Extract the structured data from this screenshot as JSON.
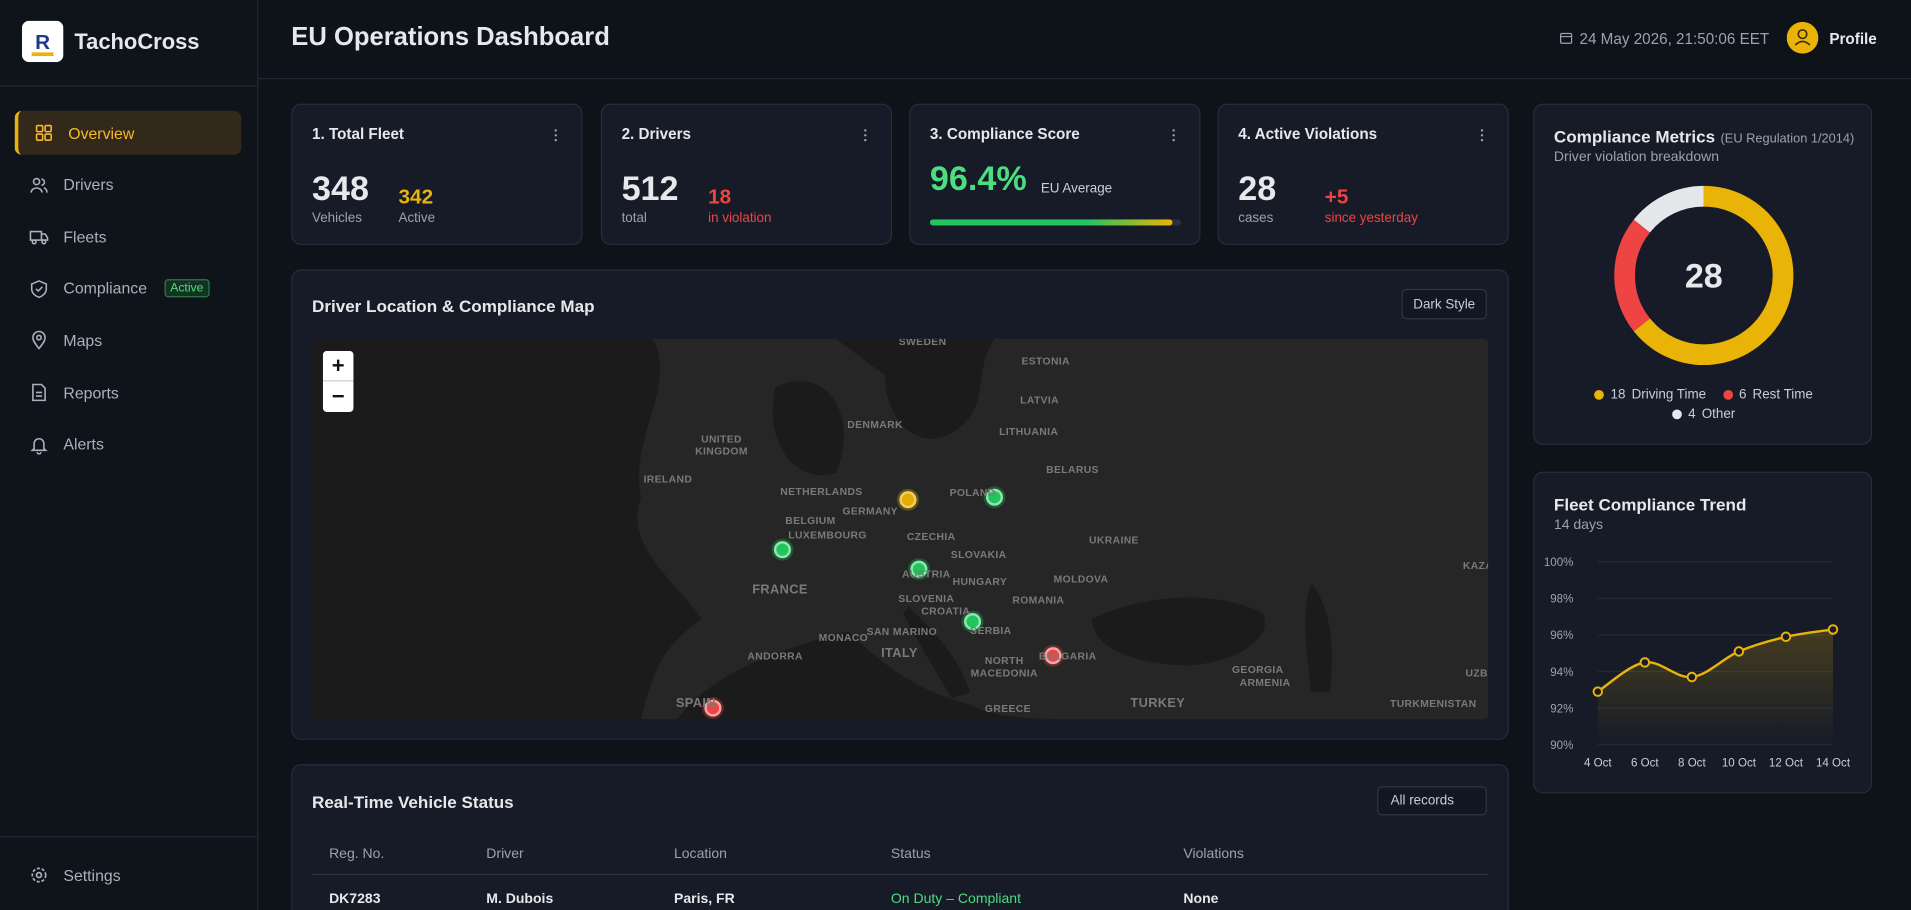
{
  "sidebar": {
    "brand": "TachoCross",
    "nav": [
      {
        "label": "Overview",
        "active": true
      },
      {
        "label": "Drivers"
      },
      {
        "label": "Fleets"
      },
      {
        "label": "Compliance",
        "badge": "Active"
      },
      {
        "label": "Maps"
      },
      {
        "label": "Reports"
      },
      {
        "label": "Alerts"
      }
    ],
    "settings": "Settings"
  },
  "header": {
    "title": "EU Operations Dashboard",
    "datetime": "24 May 2026, 21:50:06 EET",
    "profile": "Profile"
  },
  "kpis": [
    {
      "title": "1. Total Fleet",
      "value": 348,
      "unit": "Vehicles",
      "secondary": 342,
      "secondary_label": "Active",
      "secondary_color": "#eab308"
    },
    {
      "title": "2. Drivers",
      "value": 512,
      "unit": "total",
      "secondary": 18,
      "secondary_label": "in violation",
      "secondary_color": "#ef4444"
    },
    {
      "title": "3. Compliance Score",
      "value": 96.4,
      "value_label": "96.4%",
      "note": "EU Average"
    },
    {
      "title": "4. Active Violations",
      "value": 28,
      "unit": "cases",
      "secondary": "+5",
      "secondary_label": "since yesterday",
      "secondary_color": "#ef4444"
    }
  ],
  "map": {
    "title": "Driver Location & Compliance Map",
    "button": "Dark Style",
    "zoom_in": "+",
    "zoom_out": "−",
    "labels": [
      "SWEDEN",
      "ESTONIA",
      "LATVIA",
      "DENMARK",
      "LITHUANIA",
      "UNITED KINGDOM",
      "IRELAND",
      "BELARUS",
      "NETHERLANDS",
      "POLAND",
      "BELGIUM",
      "GERMANY",
      "LUXEMBOURG",
      "CZECHIA",
      "UKRAINE",
      "SLOVAKIA",
      "FRANCE",
      "AUSTRIA",
      "HUNGARY",
      "MOLDOVA",
      "SLOVENIA",
      "CROATIA",
      "ROMANIA",
      "SAN MARINO",
      "MONACO",
      "SERBIA",
      "ANDORRA",
      "ITALY",
      "BULGARIA",
      "NORTH MACEDONIA",
      "GEORGIA",
      "ARMENIA",
      "SPAIN",
      "GREECE",
      "TURKEY",
      "TURKMENISTAN",
      "UZBEKISTAN",
      "KAZAKHSTAN"
    ]
  },
  "table": {
    "title": "Real-Time Vehicle Status",
    "filter": "All records",
    "columns": [
      "Reg. No.",
      "Driver",
      "Location",
      "Status",
      "Violations"
    ],
    "rows": [
      [
        "DK7283",
        "M. Dubois",
        "Paris, FR",
        "On Duty – Compliant",
        "None"
      ]
    ]
  },
  "chart_data": [
    {
      "type": "pie",
      "title": "Compliance Metrics",
      "title_note": "(EU Regulation 1/2014)",
      "subtitle": "Driver violation breakdown",
      "total": 28,
      "categories": [
        "Driving Time",
        "Rest Time",
        "Other"
      ],
      "values": [
        18,
        6,
        4
      ],
      "colors": [
        "#eab308",
        "#ef4444",
        "#e5e7eb"
      ]
    },
    {
      "type": "line",
      "title": "Fleet Compliance Trend",
      "subtitle": "14 days",
      "categories": [
        "4 Oct",
        "6 Oct",
        "8 Oct",
        "10 Oct",
        "12 Oct",
        "14 Oct"
      ],
      "values": [
        92.9,
        94.5,
        93.7,
        95.1,
        95.9,
        96.3
      ],
      "color": "#eab308",
      "ylim": [
        90,
        100
      ],
      "yticks": [
        {
          "value": 90,
          "label": "90%"
        },
        {
          "value": 92,
          "label": "92%"
        },
        {
          "value": 94,
          "label": "94%"
        },
        {
          "value": 96,
          "label": "96%"
        },
        {
          "value": 98,
          "label": "98%"
        },
        {
          "value": 100,
          "label": "100%"
        }
      ],
      "grid": true
    }
  ]
}
